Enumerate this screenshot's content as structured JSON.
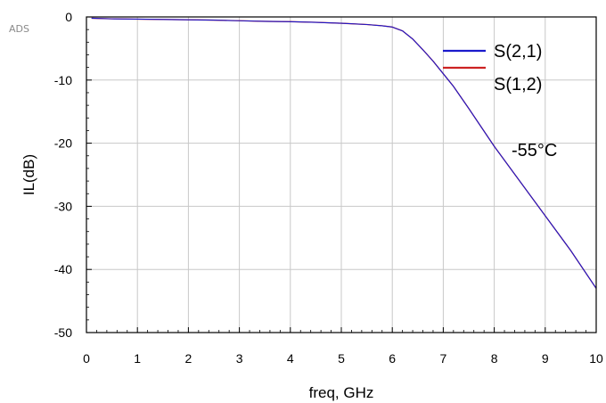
{
  "watermark": "ADS",
  "colors": {
    "s21": "#1a1acc",
    "s12": "#cc2222",
    "grid": "#c8c8c8",
    "axis": "#000000"
  },
  "chart_data": {
    "type": "line",
    "xlabel": "freq, GHz",
    "ylabel": "IL(dB)",
    "xlim": [
      0,
      10
    ],
    "ylim": [
      -50,
      0
    ],
    "xticks": [
      0,
      1,
      2,
      3,
      4,
      5,
      6,
      7,
      8,
      9,
      10
    ],
    "yticks": [
      0,
      -10,
      -20,
      -30,
      -40,
      -50
    ],
    "grid": true,
    "legend_position": "top-right",
    "annotation": "-55°C",
    "series": [
      {
        "name": "S(2,1)",
        "color": "#1a1acc",
        "x": [
          0.1,
          0.5,
          1,
          1.5,
          2,
          2.5,
          3,
          3.5,
          4,
          4.5,
          5,
          5.5,
          5.8,
          6.0,
          6.2,
          6.4,
          6.6,
          6.8,
          7.0,
          7.2,
          7.5,
          8.0,
          8.5,
          9.0,
          9.5,
          10.0
        ],
        "y": [
          -0.2,
          -0.3,
          -0.35,
          -0.4,
          -0.45,
          -0.5,
          -0.6,
          -0.7,
          -0.75,
          -0.85,
          -1.0,
          -1.2,
          -1.4,
          -1.6,
          -2.2,
          -3.5,
          -5.2,
          -7.0,
          -9.0,
          -11.0,
          -14.5,
          -20.5,
          -26.0,
          -31.5,
          -37.0,
          -43.0
        ]
      },
      {
        "name": "S(1,2)",
        "color": "#cc2222",
        "x": [
          0.1,
          0.5,
          1,
          1.5,
          2,
          2.5,
          3,
          3.5,
          4,
          4.5,
          5,
          5.5,
          5.8,
          6.0,
          6.2,
          6.4,
          6.6,
          6.8,
          7.0,
          7.2,
          7.5,
          8.0,
          8.5,
          9.0,
          9.5,
          10.0
        ],
        "y": [
          -0.2,
          -0.3,
          -0.35,
          -0.4,
          -0.45,
          -0.5,
          -0.6,
          -0.7,
          -0.75,
          -0.85,
          -1.0,
          -1.2,
          -1.4,
          -1.6,
          -2.2,
          -3.5,
          -5.2,
          -7.0,
          -9.0,
          -11.0,
          -14.5,
          -20.5,
          -26.0,
          -31.5,
          -37.0,
          -43.0
        ]
      }
    ]
  }
}
